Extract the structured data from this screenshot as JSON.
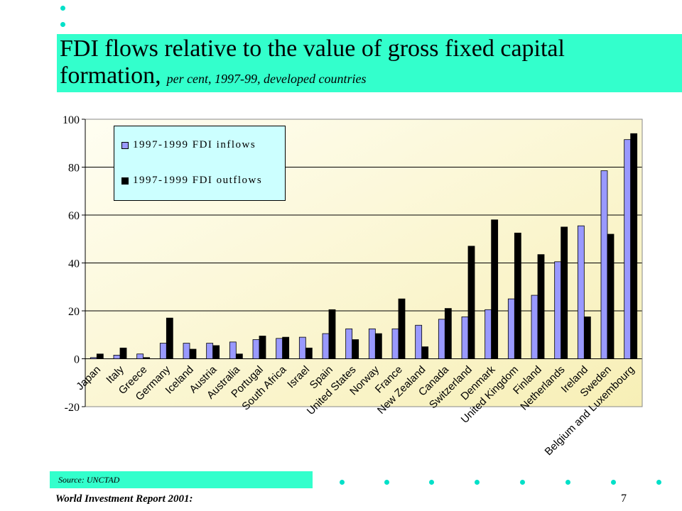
{
  "slide": {
    "title_line1": "FDI flows relative to the value of gross fixed capital",
    "title_line2": "formation,",
    "subtitle": "per cent, 1997-99, developed countries",
    "source": "Source: UNCTAD",
    "footer": "World Investment Report 2001:",
    "page_number": "7",
    "accent_color": "#33ffcc",
    "dot_color": "#00e0c8"
  },
  "chart_data": {
    "type": "bar",
    "title": "",
    "xlabel": "",
    "ylabel": "",
    "ylim": [
      -20,
      100
    ],
    "yticks": [
      -20,
      0,
      20,
      40,
      60,
      80,
      100
    ],
    "legend_position": "top-left",
    "categories": [
      "Japan",
      "Italy",
      "Greece",
      "Germany",
      "Iceland",
      "Austria",
      "Australia",
      "Portugal",
      "South Africa",
      "Israel",
      "Spain",
      "United States",
      "Norway",
      "France",
      "New Zealand",
      "Canada",
      "Switzerland",
      "Denmark",
      "United Kingdom",
      "Finland",
      "Netherlands",
      "Ireland",
      "Sweden",
      "Belgium and Luxembourg"
    ],
    "series": [
      {
        "name": "1997-1999 FDI inflows",
        "color": "#9999ff",
        "values": [
          0.5,
          1.5,
          2,
          6.5,
          6.5,
          6.5,
          7,
          8,
          8.5,
          9,
          10.5,
          12.5,
          12.5,
          12.5,
          14,
          16.5,
          17.5,
          20.5,
          25,
          26.5,
          40.5,
          55.5,
          78.5,
          91.5
        ]
      },
      {
        "name": "1997-1999 FDI outflows",
        "color": "#000000",
        "values": [
          2,
          4.5,
          0.5,
          17,
          4,
          5.5,
          2,
          9.5,
          9,
          4.5,
          20.5,
          8,
          10.5,
          25,
          5,
          21,
          47,
          58,
          52.5,
          43.5,
          55,
          17.5,
          52,
          94
        ]
      }
    ]
  }
}
